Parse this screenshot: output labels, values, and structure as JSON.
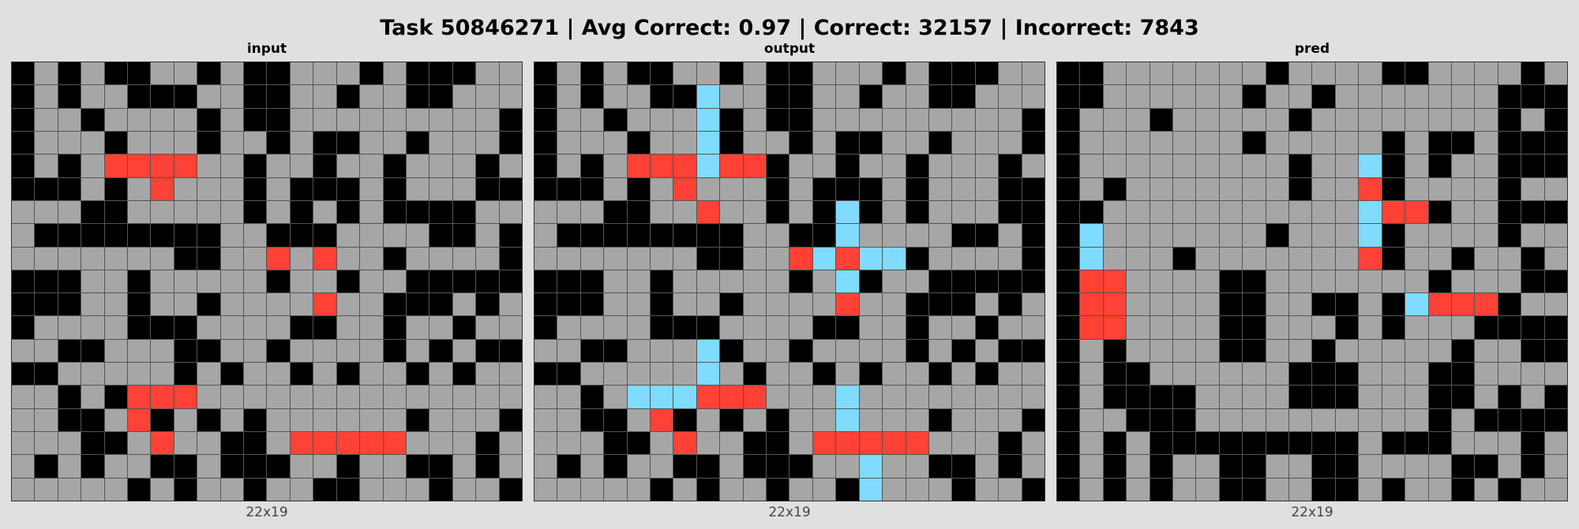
{
  "header": {
    "title": "Task 50846271 | Avg Correct: 0.97 | Correct: 32157 | Incorrect: 7843"
  },
  "palette": {
    "0": "#000000",
    "2": "#ff4136",
    "5": "#a6a6a6",
    "8": "#7fdbff"
  },
  "panels": [
    {
      "label": "input",
      "dims": "22x19",
      "grid": [
        "0505005505005550500055",
        "0505500055005505500555",
        "0550555505005555555550",
        "0555055505505005505550",
        "0505222255055055055505",
        "0005052555050005055500",
        "5550055555050505000055",
        "5000000005500055550050",
        "5555555005525255055550",
        "0005505555505505500000",
        "0005505505555255000505",
        "0555500055550055055055",
        "5500555005505555050500",
        "0055555050550505505055",
        "5505022255555555555555",
        "5500520505055555505550",
        "5550052550052222255505",
        "5050550050005505500505",
        "5555505055055005550550"
      ]
    },
    {
      "label": "output",
      "dims": "22x19",
      "grid": [
        "0505005505005550500055",
        "0505500855005505500555",
        "0550555805005555555550",
        "0555055805505005505550",
        "0505222822055055055505",
        "0005052555050005055500",
        "5550055255050805055500",
        "5000000005500855550050",
        "5555555005528288055550",
        "0005505555505805500000",
        "0005505505555255000505",
        "0555500055550055055055",
        "5500555805505555050500",
        "0055555850550505505055",
        "5505888222555855555555",
        "5500520505055855505550",
        "5550052550052222255505",
        "5050550050005585500505",
        "5555505055055085550550"
      ]
    },
    {
      "label": "pred",
      "dims": "22x19",
      "grid": [
        "0055555550555500555505",
        "0055555505505555555000",
        "0555055555055555555050",
        "0555555505555505005000",
        "0555555555055805055000",
        "0505555555055205555055",
        "0055555555555822055000",
        "0855555550555805555055",
        "0855505555555205505505",
        "0225555005555555055500",
        "0225555005500508222055",
        "0225555005550505550000",
        "0505555005505555505500",
        "0500555555000555005555",
        "0500005555000555005050",
        "0550005555555555050000",
        "0505000000000500055505",
        "0505055005500555500505",
        "0505055005500505505055"
      ]
    }
  ]
}
